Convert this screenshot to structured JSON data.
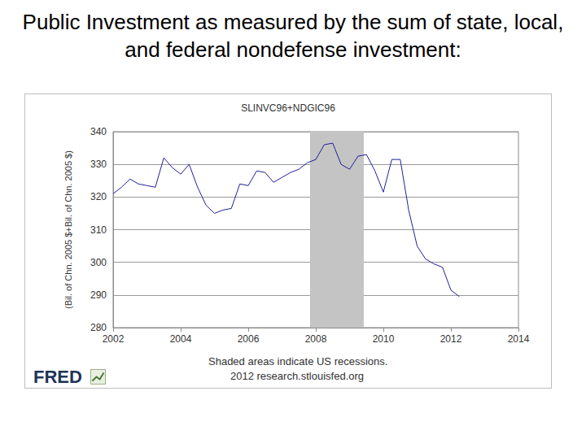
{
  "slide_title": "Public Investment as measured by the sum of state, local, and federal nondefense investment:",
  "chart_data": {
    "type": "line",
    "title": "SLINVC96+NDGIC96",
    "ylabel": "(Bil. of Chn. 2005 $+Bil. of Chn. 2005 $)",
    "x": [
      2002,
      2002.25,
      2002.5,
      2002.75,
      2003,
      2003.25,
      2003.5,
      2003.75,
      2004,
      2004.25,
      2004.5,
      2004.75,
      2005,
      2005.25,
      2005.5,
      2005.75,
      2006,
      2006.25,
      2006.5,
      2006.75,
      2007,
      2007.25,
      2007.5,
      2007.75,
      2008,
      2008.25,
      2008.5,
      2008.75,
      2009,
      2009.25,
      2009.5,
      2009.75,
      2010,
      2010.25,
      2010.5,
      2010.75,
      2011,
      2011.25,
      2011.5,
      2011.75,
      2012,
      2012.25
    ],
    "values": [
      321,
      323,
      325.5,
      324,
      323.5,
      323,
      332,
      329,
      327,
      330,
      323,
      317.5,
      315,
      316,
      316.5,
      324,
      323.5,
      328,
      327.5,
      324.5,
      326,
      327.5,
      328.5,
      330.5,
      331.5,
      336,
      336.5,
      330,
      328.5,
      332.5,
      333,
      328,
      321.5,
      331.5,
      331.5,
      316,
      305,
      301,
      299.5,
      298.5,
      291.5,
      289.5
    ],
    "color": "#1f1f9c",
    "xlim": [
      2002,
      2014
    ],
    "xticks": [
      2002,
      2004,
      2006,
      2008,
      2010,
      2012,
      2014
    ],
    "ylim": [
      280,
      340
    ],
    "yticks": [
      280,
      290,
      300,
      310,
      320,
      330,
      340
    ],
    "grid": true,
    "recessions": [
      [
        2007.83,
        2009.42
      ]
    ],
    "note": "Shaded areas indicate US recessions.",
    "source": "2012 research.stlouisfed.org",
    "logo": "FRED"
  }
}
